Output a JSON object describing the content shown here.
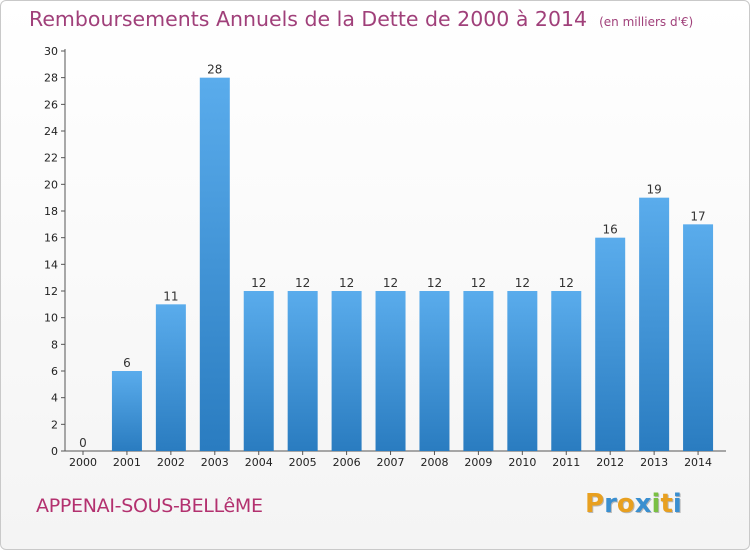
{
  "chart_data": {
    "type": "bar",
    "title": "Remboursements Annuels de la Dette de 2000 à 2014",
    "unit_note": "(en milliers d'€)",
    "categories": [
      "2000",
      "2001",
      "2002",
      "2003",
      "2004",
      "2005",
      "2006",
      "2007",
      "2008",
      "2009",
      "2010",
      "2011",
      "2012",
      "2013",
      "2014"
    ],
    "values": [
      0,
      6,
      11,
      28,
      12,
      12,
      12,
      12,
      12,
      12,
      12,
      12,
      16,
      19,
      17
    ],
    "data_labels": [
      "0",
      "6",
      "11",
      "28",
      "12",
      "12",
      "12",
      "12",
      "12",
      "12",
      "12",
      "12",
      "16",
      "19",
      "17"
    ],
    "ylim": [
      0,
      30
    ],
    "yticks": [
      0,
      2,
      4,
      6,
      8,
      10,
      12,
      14,
      16,
      18,
      20,
      22,
      24,
      26,
      28,
      30
    ],
    "grid": false,
    "bar_color_top": "#5aacec",
    "bar_color_bottom": "#2a7cc0"
  },
  "footer": {
    "commune": "APPENAI-SOUS-BELLêME",
    "logo": [
      "P",
      "r",
      "o",
      "x",
      "i",
      "t",
      "i"
    ],
    "logo_colors": [
      "#e8a020",
      "#3a8fd0",
      "#e8a020",
      "#3a8fd0",
      "#7ac043",
      "#e8a020",
      "#3a8fd0"
    ]
  }
}
